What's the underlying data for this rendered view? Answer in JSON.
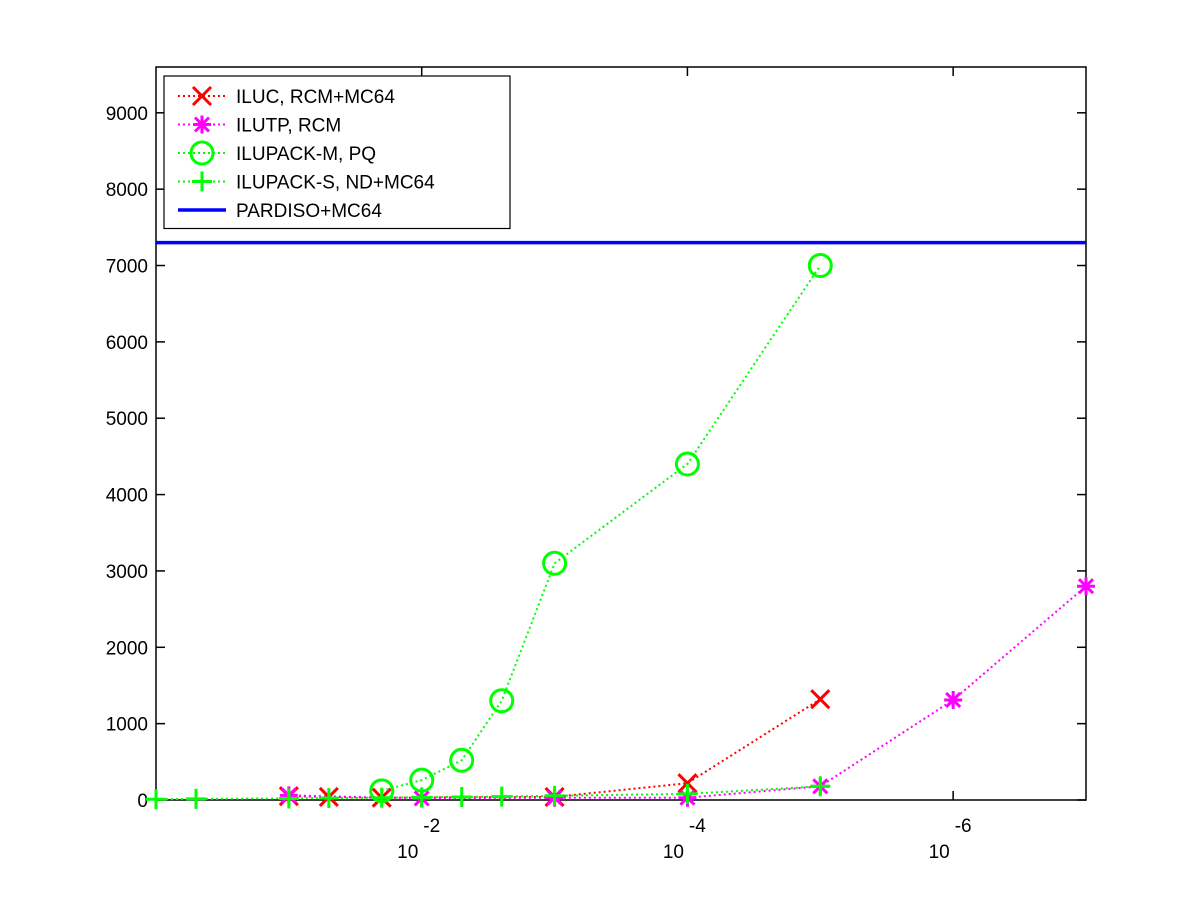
{
  "chart_data": {
    "type": "line",
    "title": "",
    "xlabel": "",
    "ylabel": "",
    "x_scale": "log",
    "x_reversed": true,
    "xlim": [
      1,
      1e-07
    ],
    "ylim": [
      0,
      9600
    ],
    "y_ticks": [
      0,
      1000,
      2000,
      3000,
      4000,
      5000,
      6000,
      7000,
      8000,
      9000
    ],
    "x_ticks": [
      {
        "value": 0.01,
        "base": "10",
        "exponent": "-2"
      },
      {
        "value": 0.0001,
        "base": "10",
        "exponent": "-4"
      },
      {
        "value": 1e-06,
        "base": "10",
        "exponent": "-6"
      }
    ],
    "grid": false,
    "legend_position": "top-left",
    "series": [
      {
        "name": "ILUC, RCM+MC64",
        "color": "#ff0000",
        "marker": "x",
        "line_style": "dotted",
        "points": [
          [
            0.1,
            50
          ],
          [
            0.05,
            40
          ],
          [
            0.02,
            30
          ],
          [
            0.001,
            40
          ],
          [
            0.0001,
            220
          ],
          [
            1e-05,
            1320
          ]
        ]
      },
      {
        "name": "ILUTP, RCM",
        "color": "#ff00ff",
        "marker": "asterisk",
        "line_style": "dotted",
        "points": [
          [
            0.1,
            60
          ],
          [
            0.01,
            20
          ],
          [
            0.001,
            30
          ],
          [
            0.0001,
            30
          ],
          [
            1e-05,
            180
          ],
          [
            1e-06,
            1310
          ],
          [
            1e-07,
            2800
          ]
        ]
      },
      {
        "name": "ILUPACK-M, PQ",
        "color": "#00ff00",
        "marker": "circle",
        "line_style": "dotted",
        "points": [
          [
            0.02,
            120
          ],
          [
            0.01,
            260
          ],
          [
            0.005,
            520
          ],
          [
            0.0025,
            1300
          ],
          [
            0.001,
            3100
          ],
          [
            0.0001,
            4400
          ],
          [
            1e-05,
            7000
          ]
        ]
      },
      {
        "name": "ILUPACK-S, ND+MC64",
        "color": "#00ff00",
        "marker": "plus",
        "line_style": "dotted",
        "points": [
          [
            1,
            10
          ],
          [
            0.5,
            15
          ],
          [
            0.1,
            20
          ],
          [
            0.05,
            25
          ],
          [
            0.02,
            30
          ],
          [
            0.01,
            35
          ],
          [
            0.005,
            40
          ],
          [
            0.0025,
            45
          ],
          [
            0.001,
            55
          ],
          [
            0.0001,
            80
          ],
          [
            1e-05,
            180
          ]
        ]
      },
      {
        "name": "PARDISO+MC64",
        "color": "#0000ff",
        "marker": "none",
        "line_style": "solid",
        "horizontal_value": 7300
      }
    ]
  }
}
